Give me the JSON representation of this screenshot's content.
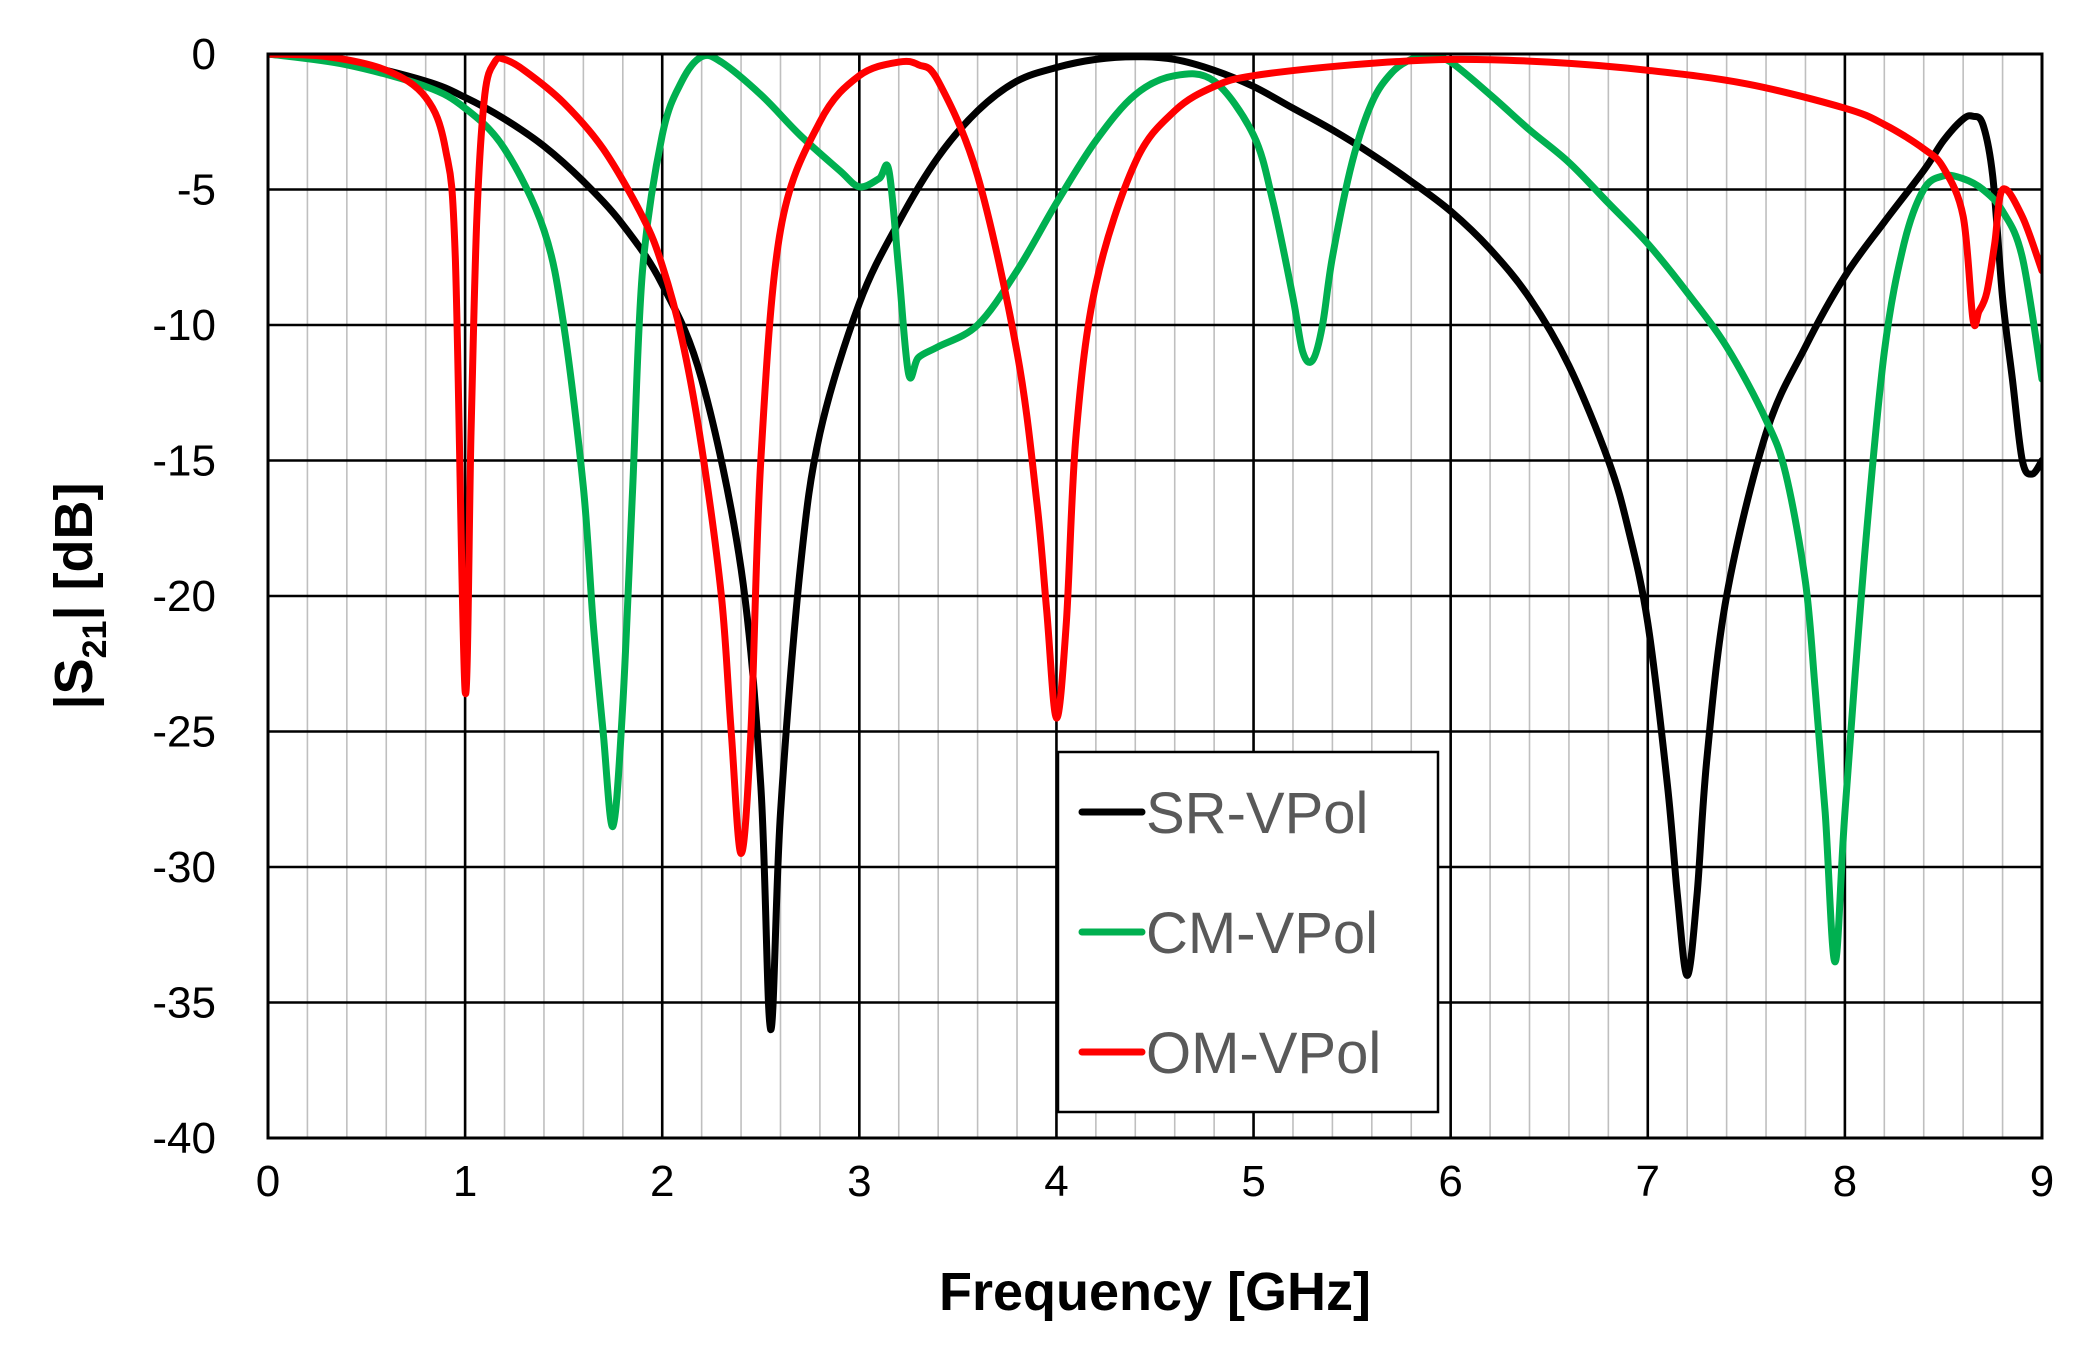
{
  "chart_data": {
    "type": "line",
    "title": "",
    "xlabel": "Frequency [GHz]",
    "ylabel_main": "|S",
    "ylabel_sub": "21",
    "ylabel_tail": "| [dB]",
    "xlim": [
      0,
      9
    ],
    "ylim": [
      -40,
      0
    ],
    "x_ticks": [
      0,
      1,
      2,
      3,
      4,
      5,
      6,
      7,
      8,
      9
    ],
    "y_ticks": [
      0,
      -5,
      -10,
      -15,
      -20,
      -25,
      -30,
      -35,
      -40
    ],
    "x_minor_step": 0.2,
    "grid": true,
    "legend_position": "center-bottom",
    "series": [
      {
        "name": "SR-VPol",
        "color": "#000000",
        "x": [
          0,
          0.4,
          0.8,
          1.0,
          1.2,
          1.4,
          1.6,
          1.8,
          2.0,
          2.2,
          2.4,
          2.5,
          2.55,
          2.6,
          2.7,
          2.8,
          3.0,
          3.2,
          3.4,
          3.6,
          3.8,
          4.0,
          4.2,
          4.4,
          4.6,
          4.8,
          5.0,
          5.2,
          5.4,
          5.6,
          5.8,
          6.0,
          6.2,
          6.4,
          6.6,
          6.8,
          6.9,
          7.0,
          7.1,
          7.15,
          7.2,
          7.25,
          7.3,
          7.4,
          7.6,
          7.8,
          8.0,
          8.2,
          8.4,
          8.5,
          8.6,
          8.65,
          8.7,
          8.75,
          8.8,
          8.85,
          8.9,
          8.95,
          9.0
        ],
        "y": [
          0,
          -0.3,
          -1.0,
          -1.6,
          -2.4,
          -3.4,
          -4.7,
          -6.3,
          -8.5,
          -12.0,
          -19.0,
          -27.0,
          -36.0,
          -28.0,
          -19.0,
          -14.0,
          -9.2,
          -6.2,
          -3.8,
          -2.1,
          -1.0,
          -0.5,
          -0.2,
          -0.1,
          -0.2,
          -0.6,
          -1.2,
          -2.0,
          -2.8,
          -3.7,
          -4.7,
          -5.8,
          -7.2,
          -9.0,
          -11.5,
          -15.0,
          -17.5,
          -21.0,
          -27.0,
          -31.0,
          -34.0,
          -31.0,
          -26.0,
          -20.0,
          -14.0,
          -10.8,
          -8.2,
          -6.2,
          -4.3,
          -3.2,
          -2.4,
          -2.3,
          -2.6,
          -4.5,
          -9.0,
          -12.0,
          -15.0,
          -15.5,
          -15.0
        ]
      },
      {
        "name": "CM-VPol",
        "color": "#00b050",
        "x": [
          0,
          0.4,
          0.8,
          1.0,
          1.2,
          1.4,
          1.5,
          1.6,
          1.65,
          1.7,
          1.75,
          1.8,
          1.85,
          1.9,
          2.0,
          2.1,
          2.2,
          2.3,
          2.5,
          2.7,
          2.9,
          3.0,
          3.1,
          3.15,
          3.2,
          3.25,
          3.3,
          3.4,
          3.6,
          3.8,
          4.0,
          4.2,
          4.4,
          4.6,
          4.8,
          5.0,
          5.1,
          5.2,
          5.25,
          5.3,
          5.35,
          5.4,
          5.5,
          5.6,
          5.7,
          5.8,
          5.9,
          6.0,
          6.2,
          6.4,
          6.6,
          6.8,
          7.0,
          7.2,
          7.4,
          7.6,
          7.7,
          7.8,
          7.85,
          7.9,
          7.95,
          8.0,
          8.1,
          8.2,
          8.3,
          8.4,
          8.5,
          8.6,
          8.7,
          8.8,
          8.9,
          9.0
        ],
        "y": [
          0,
          -0.4,
          -1.2,
          -2.0,
          -3.5,
          -6.5,
          -10.0,
          -16.0,
          -21.0,
          -25.0,
          -28.5,
          -24.0,
          -16.0,
          -8.0,
          -3.0,
          -1.0,
          -0.1,
          -0.3,
          -1.5,
          -3.0,
          -4.3,
          -4.9,
          -4.6,
          -4.3,
          -8.0,
          -11.8,
          -11.2,
          -10.8,
          -10.0,
          -8.0,
          -5.5,
          -3.2,
          -1.5,
          -0.8,
          -1.0,
          -3.0,
          -5.5,
          -9.0,
          -11.0,
          -11.3,
          -10.0,
          -7.5,
          -4.0,
          -1.8,
          -0.7,
          -0.2,
          -0.1,
          -0.3,
          -1.5,
          -2.8,
          -4.0,
          -5.5,
          -7.0,
          -8.8,
          -10.8,
          -13.5,
          -15.5,
          -19.5,
          -23.5,
          -28.0,
          -33.5,
          -28.0,
          -18.5,
          -11.0,
          -7.0,
          -5.0,
          -4.5,
          -4.6,
          -5.0,
          -5.8,
          -7.5,
          -12.0
        ]
      },
      {
        "name": "OM-VPol",
        "color": "#ff0000",
        "x": [
          0,
          0.3,
          0.6,
          0.8,
          0.9,
          0.95,
          1.0,
          1.03,
          1.06,
          1.1,
          1.15,
          1.2,
          1.3,
          1.5,
          1.7,
          1.9,
          2.0,
          2.1,
          2.2,
          2.3,
          2.35,
          2.4,
          2.45,
          2.5,
          2.6,
          2.8,
          3.0,
          3.2,
          3.3,
          3.4,
          3.6,
          3.8,
          3.9,
          3.95,
          4.0,
          4.05,
          4.1,
          4.2,
          4.4,
          4.6,
          4.8,
          5.0,
          5.5,
          6.0,
          6.5,
          7.0,
          7.5,
          8.0,
          8.2,
          8.4,
          8.5,
          8.6,
          8.65,
          8.68,
          8.72,
          8.76,
          8.8,
          8.9,
          9.0
        ],
        "y": [
          0,
          -0.1,
          -0.6,
          -1.6,
          -3.5,
          -7.5,
          -23.5,
          -14.0,
          -6.0,
          -1.5,
          -0.3,
          -0.2,
          -0.6,
          -1.8,
          -3.5,
          -6.0,
          -7.8,
          -10.5,
          -14.5,
          -20.0,
          -25.0,
          -29.5,
          -25.0,
          -15.0,
          -6.5,
          -2.5,
          -0.8,
          -0.3,
          -0.4,
          -1.0,
          -4.5,
          -11.0,
          -16.5,
          -20.5,
          -24.5,
          -21.0,
          -14.0,
          -8.5,
          -4.0,
          -2.1,
          -1.2,
          -0.8,
          -0.4,
          -0.2,
          -0.3,
          -0.6,
          -1.1,
          -2.0,
          -2.6,
          -3.5,
          -4.2,
          -6.0,
          -9.8,
          -9.5,
          -8.8,
          -7.0,
          -5.0,
          -6.0,
          -8.0
        ]
      }
    ]
  }
}
